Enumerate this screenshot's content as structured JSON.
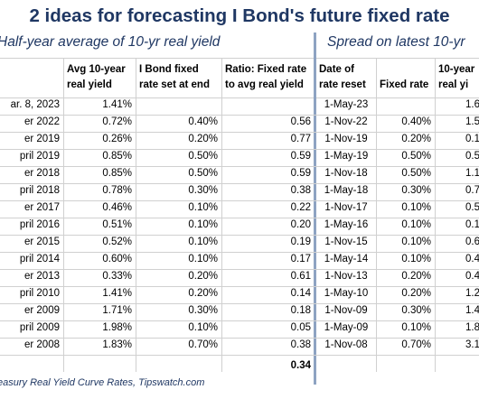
{
  "title": "2 ideas for forecasting I Bond's future fixed rate",
  "left_section_title": "Half-year average of 10-yr real yield",
  "right_section_title": "Spread on latest 10-yr",
  "headers": {
    "avg_real_yield": "Avg 10-year real yield",
    "fixed_rate_set": "I Bond fixed rate set at end",
    "ratio": "Ratio: Fixed rate to avg real yield",
    "date_reset": "Date of rate reset",
    "fixed_rate": "Fixed rate",
    "ten_yr": "10-year real yi"
  },
  "rows": [
    {
      "period": "ar. 8, 2023",
      "avg": "1.41%",
      "fixed": "",
      "ratio": "",
      "date": "1-May-23",
      "fr": "",
      "ten": "1.6"
    },
    {
      "period": "er 2022",
      "avg": "0.72%",
      "fixed": "0.40%",
      "ratio": "0.56",
      "date": "1-Nov-22",
      "fr": "0.40%",
      "ten": "1.5"
    },
    {
      "period": "er 2019",
      "avg": "0.26%",
      "fixed": "0.20%",
      "ratio": "0.77",
      "date": "1-Nov-19",
      "fr": "0.20%",
      "ten": "0.1"
    },
    {
      "period": "pril 2019",
      "avg": "0.85%",
      "fixed": "0.50%",
      "ratio": "0.59",
      "date": "1-May-19",
      "fr": "0.50%",
      "ten": "0.5"
    },
    {
      "period": "er 2018",
      "avg": "0.85%",
      "fixed": "0.50%",
      "ratio": "0.59",
      "date": "1-Nov-18",
      "fr": "0.50%",
      "ten": "1.1"
    },
    {
      "period": "pril 2018",
      "avg": "0.78%",
      "fixed": "0.30%",
      "ratio": "0.38",
      "date": "1-May-18",
      "fr": "0.30%",
      "ten": "0.7"
    },
    {
      "period": "er 2017",
      "avg": "0.46%",
      "fixed": "0.10%",
      "ratio": "0.22",
      "date": "1-Nov-17",
      "fr": "0.10%",
      "ten": "0.5"
    },
    {
      "period": "pril 2016",
      "avg": "0.51%",
      "fixed": "0.10%",
      "ratio": "0.20",
      "date": "1-May-16",
      "fr": "0.10%",
      "ten": "0.1"
    },
    {
      "period": "er 2015",
      "avg": "0.52%",
      "fixed": "0.10%",
      "ratio": "0.19",
      "date": "1-Nov-15",
      "fr": "0.10%",
      "ten": "0.6"
    },
    {
      "period": "pril 2014",
      "avg": "0.60%",
      "fixed": "0.10%",
      "ratio": "0.17",
      "date": "1-May-14",
      "fr": "0.10%",
      "ten": "0.4"
    },
    {
      "period": "er 2013",
      "avg": "0.33%",
      "fixed": "0.20%",
      "ratio": "0.61",
      "date": "1-Nov-13",
      "fr": "0.20%",
      "ten": "0.4"
    },
    {
      "period": "pril 2010",
      "avg": "1.41%",
      "fixed": "0.20%",
      "ratio": "0.14",
      "date": "1-May-10",
      "fr": "0.20%",
      "ten": "1.2"
    },
    {
      "period": "er 2009",
      "avg": "1.71%",
      "fixed": "0.30%",
      "ratio": "0.18",
      "date": "1-Nov-09",
      "fr": "0.30%",
      "ten": "1.4"
    },
    {
      "period": "pril 2009",
      "avg": "1.98%",
      "fixed": "0.10%",
      "ratio": "0.05",
      "date": "1-May-09",
      "fr": "0.10%",
      "ten": "1.8"
    },
    {
      "period": "er 2008",
      "avg": "1.83%",
      "fixed": "0.70%",
      "ratio": "0.38",
      "date": "1-Nov-08",
      "fr": "0.70%",
      "ten": "3.1"
    }
  ],
  "average_ratio": "0.34",
  "source": "easury Real Yield Curve Rates, Tipswatch.com"
}
